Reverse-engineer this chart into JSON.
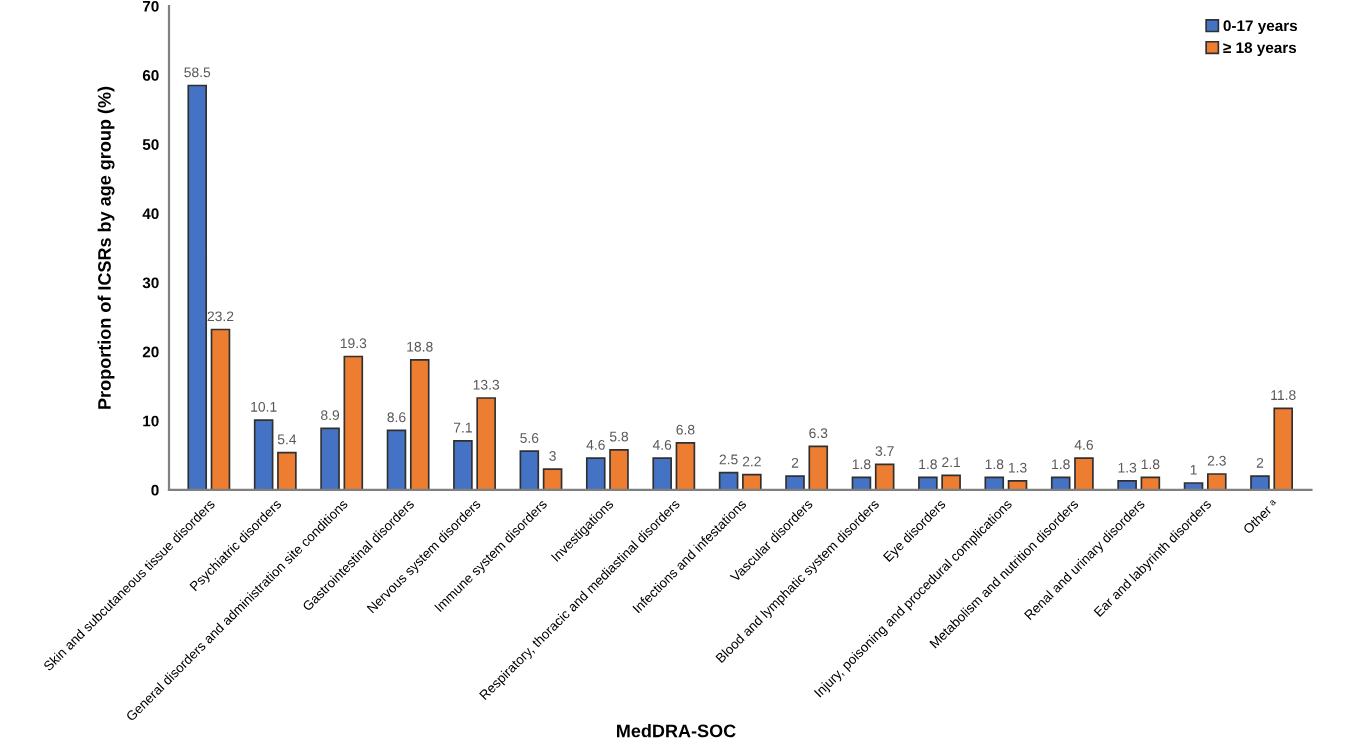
{
  "chart_data": {
    "type": "bar",
    "xlabel": "MedDRA-SOC",
    "ylabel": "Proportion of ICSRs by age group (%)",
    "categories": [
      "Skin and subcutaneous tissue disorders",
      "Psychiatric disorders",
      "General disorders and administration site conditions",
      "Gastrointestinal disorders",
      "Nervous system disorders",
      "Immune system disorders",
      "Investigations",
      "Respiratory, thoracic and mediastinal disorders",
      "Infections and infestations",
      "Vascular disorders",
      "Blood and lymphatic system disorders",
      "Eye disorders",
      "Injury, poisoning and procedural complications",
      "Metabolism and nutrition disorders",
      "Renal and urinary disorders",
      "Ear and labyrinth disorders",
      "Other ᵃ"
    ],
    "series": [
      {
        "name": "0-17 years",
        "color": "#4472c4",
        "values": [
          58.5,
          10.1,
          8.9,
          8.6,
          7.1,
          5.6,
          4.6,
          4.6,
          2.5,
          2,
          1.8,
          1.8,
          1.8,
          1.8,
          1.3,
          1,
          2
        ]
      },
      {
        "name": "≥ 18 years",
        "color": "#ed7d31",
        "values": [
          23.2,
          5.4,
          19.3,
          18.8,
          13.3,
          3,
          5.8,
          6.8,
          2.2,
          6.3,
          3.7,
          2.1,
          1.3,
          4.6,
          1.8,
          2.3,
          11.8
        ]
      }
    ],
    "ylim": [
      0,
      70
    ],
    "yticks": [
      0,
      10,
      20,
      30,
      40,
      50,
      60,
      70
    ],
    "data_labels": true,
    "legend": "top right",
    "grid": false
  }
}
